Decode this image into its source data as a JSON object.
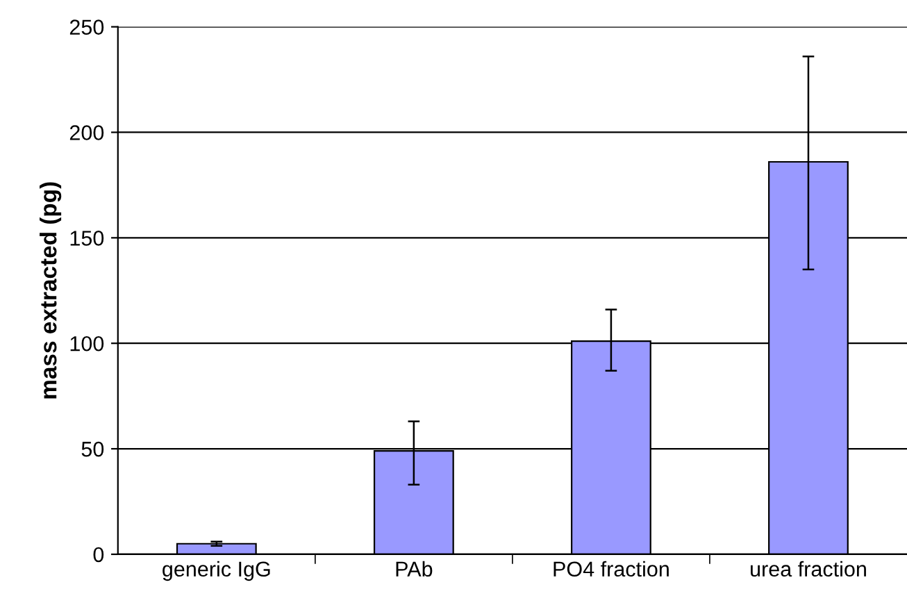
{
  "chart_data": {
    "type": "bar",
    "ylabel": "mass extracted (pg)",
    "categories": [
      "generic IgG",
      "PAb",
      "PO4 fraction",
      "urea fraction"
    ],
    "values": [
      5,
      49,
      101,
      186
    ],
    "errors": [
      [
        4,
        6
      ],
      [
        33,
        63
      ],
      [
        87,
        116
      ],
      [
        135,
        236
      ]
    ],
    "color": "#9999ff",
    "ylim": [
      0,
      250
    ],
    "yticks": [
      0,
      50,
      100,
      150,
      200,
      250
    ],
    "grid": "y",
    "legend": false
  }
}
